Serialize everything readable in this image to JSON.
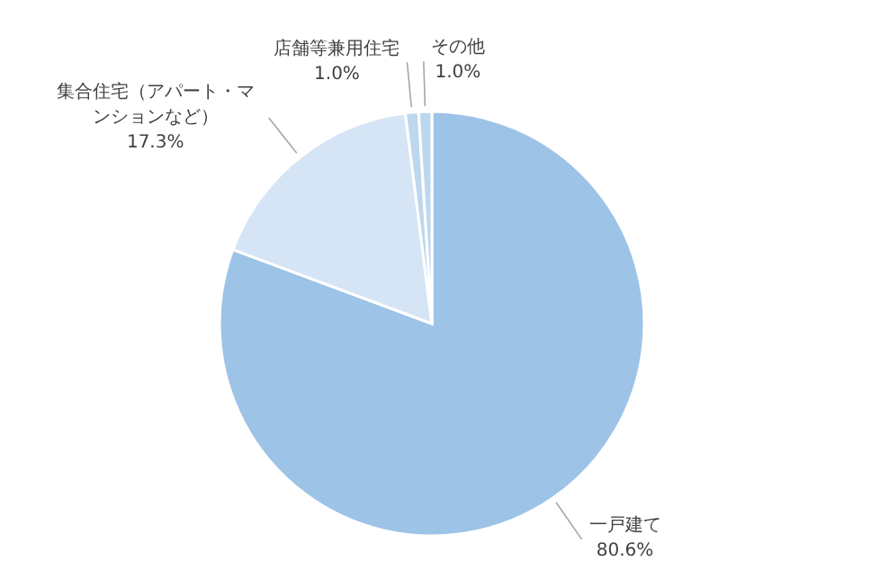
{
  "chart_data": {
    "type": "pie",
    "categories": [
      "一戸建て",
      "集合住宅（アパート・マンションなど）",
      "店舗等兼用住宅",
      "その他"
    ],
    "values": [
      80.6,
      17.3,
      1.0,
      1.0
    ],
    "colors": [
      "#9dc3e6",
      "#d5e5f5",
      "#bdd7ee",
      "#bdd7ee"
    ],
    "value_labels": [
      "80.6%",
      "17.3%",
      "1.0%",
      "1.0%"
    ]
  }
}
